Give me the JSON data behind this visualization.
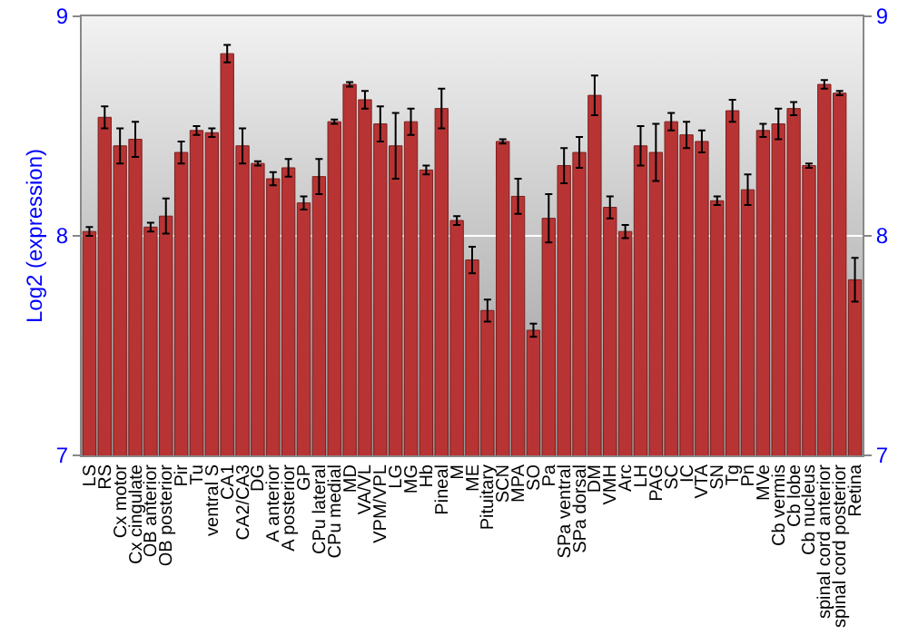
{
  "chart_data": {
    "type": "bar",
    "ylabel": "Log2 (expression)",
    "categories": [
      "LS",
      "RS",
      "Cx motor",
      "Cx cingulate",
      "OB anterior",
      "OB posterior",
      "Pir",
      "Tu",
      "ventral S",
      "CA1",
      "CA2/CA3",
      "DG",
      "A anterior",
      "A posterior",
      "GP",
      "CPu lateral",
      "CPu medial",
      "MD",
      "VA/VL",
      "VPM/VPL",
      "LG",
      "MG",
      "Hb",
      "Pineal",
      "M",
      "ME",
      "Pituitary",
      "SCN",
      "MPA",
      "SO",
      "Pa",
      "SPa ventral",
      "SPa dorsal",
      "DM",
      "VMH",
      "Arc",
      "LH",
      "PAG",
      "SC",
      "IC",
      "VTA",
      "SN",
      "Tg",
      "Pn",
      "MVe",
      "Cb vermis",
      "Cb lobe",
      "Cb nucleus",
      "spinal cord anterior",
      "spinal cord posterior",
      "Retina"
    ],
    "values": [
      8.02,
      8.54,
      8.41,
      8.44,
      8.04,
      8.09,
      8.38,
      8.48,
      8.47,
      8.83,
      8.41,
      8.33,
      8.26,
      8.31,
      8.15,
      8.27,
      8.52,
      8.69,
      8.62,
      8.51,
      8.41,
      8.52,
      8.3,
      8.58,
      8.07,
      7.89,
      7.66,
      8.43,
      8.18,
      7.57,
      8.08,
      8.32,
      8.38,
      8.64,
      8.13,
      8.02,
      8.41,
      8.38,
      8.52,
      8.46,
      8.43,
      8.16,
      8.57,
      8.21,
      8.48,
      8.51,
      8.58,
      8.32,
      8.69,
      8.65,
      7.8
    ],
    "errors": [
      0.02,
      0.05,
      0.08,
      0.08,
      0.02,
      0.08,
      0.05,
      0.02,
      0.02,
      0.04,
      0.08,
      0.01,
      0.03,
      0.04,
      0.03,
      0.08,
      0.01,
      0.01,
      0.04,
      0.08,
      0.15,
      0.06,
      0.02,
      0.09,
      0.02,
      0.06,
      0.05,
      0.01,
      0.08,
      0.03,
      0.11,
      0.08,
      0.07,
      0.09,
      0.05,
      0.03,
      0.09,
      0.13,
      0.04,
      0.06,
      0.05,
      0.02,
      0.05,
      0.07,
      0.03,
      0.07,
      0.03,
      0.01,
      0.02,
      0.01,
      0.1
    ],
    "color": "#b83434",
    "ylim": [
      7,
      9
    ],
    "yticks": [
      7,
      8,
      9
    ],
    "y2lim": [
      7,
      9
    ],
    "y2ticks": [
      7,
      8,
      9
    ],
    "grid": "y"
  }
}
